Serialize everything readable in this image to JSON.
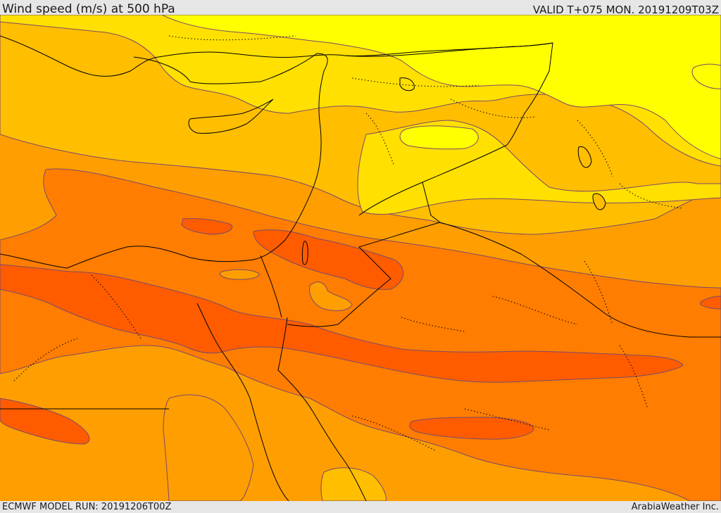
{
  "header": {
    "title": "Wind speed (m/s) at 500 hPa",
    "valid": "VALID T+075 MON. 20191209T03Z"
  },
  "footer": {
    "model_run": "ECMWF MODEL RUN: 20191206T00Z",
    "credit": "ArabiaWeather Inc."
  },
  "colors": {
    "band_lowest": "#ffff00",
    "band_low": "#ffe000",
    "band_mid": "#ffbe00",
    "band_high": "#ff9e00",
    "band_higher": "#ff7d00",
    "band_highest": "#ff5c00",
    "contour_line": "#7a4a6a",
    "coastline": "#000000",
    "border_dotted": "#000000"
  }
}
